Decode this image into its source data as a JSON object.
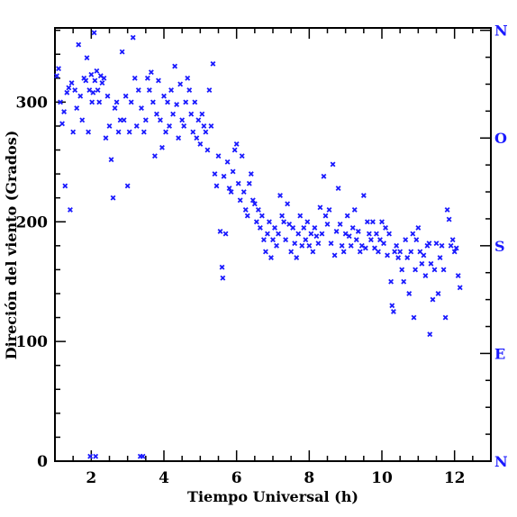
{
  "chart_data": {
    "type": "scatter",
    "xlabel": "Tiempo Universal (h)",
    "ylabel": "Direción del viento (Grados)",
    "xlim": [
      1.0,
      13.0
    ],
    "ylim": [
      0,
      362
    ],
    "x_ticks": [
      2,
      4,
      6,
      8,
      10,
      12
    ],
    "y_ticks": [
      0,
      100,
      200,
      300
    ],
    "right_axis_labels": [
      {
        "value": 0,
        "label": "N"
      },
      {
        "value": 90,
        "label": "E"
      },
      {
        "value": 180,
        "label": "S"
      },
      {
        "value": 270,
        "label": "O"
      },
      {
        "value": 360,
        "label": "N"
      }
    ],
    "marker": "x",
    "grid": false,
    "colors": {
      "points": "#1a1aff",
      "right_labels": "#1a1aff",
      "axes": "#000000"
    },
    "series": [
      {
        "points": [
          [
            1.05,
            322
          ],
          [
            1.1,
            328
          ],
          [
            1.15,
            300
          ],
          [
            1.2,
            282
          ],
          [
            1.25,
            292
          ],
          [
            1.28,
            230
          ],
          [
            1.33,
            308
          ],
          [
            1.38,
            312
          ],
          [
            1.42,
            210
          ],
          [
            1.46,
            316
          ],
          [
            1.5,
            275
          ],
          [
            1.55,
            310
          ],
          [
            1.6,
            295
          ],
          [
            1.65,
            348
          ],
          [
            1.7,
            305
          ],
          [
            1.75,
            285
          ],
          [
            1.8,
            320
          ],
          [
            1.85,
            318
          ],
          [
            1.88,
            337
          ],
          [
            1.92,
            275
          ],
          [
            1.95,
            310
          ],
          [
            1.97,
            4
          ],
          [
            2.0,
            323
          ],
          [
            2.02,
            300
          ],
          [
            2.05,
            308
          ],
          [
            2.08,
            358
          ],
          [
            2.1,
            318
          ],
          [
            2.12,
            4
          ],
          [
            2.15,
            326
          ],
          [
            2.18,
            310
          ],
          [
            2.22,
            300
          ],
          [
            2.26,
            322
          ],
          [
            2.3,
            316
          ],
          [
            2.35,
            320
          ],
          [
            2.4,
            270
          ],
          [
            2.45,
            305
          ],
          [
            2.5,
            280
          ],
          [
            2.55,
            252
          ],
          [
            2.6,
            220
          ],
          [
            2.65,
            295
          ],
          [
            2.7,
            300
          ],
          [
            2.75,
            275
          ],
          [
            2.8,
            285
          ],
          [
            2.85,
            342
          ],
          [
            2.9,
            285
          ],
          [
            2.95,
            305
          ],
          [
            3.0,
            230
          ],
          [
            3.05,
            275
          ],
          [
            3.1,
            300
          ],
          [
            3.15,
            354
          ],
          [
            3.2,
            320
          ],
          [
            3.25,
            280
          ],
          [
            3.3,
            310
          ],
          [
            3.35,
            4
          ],
          [
            3.38,
            295
          ],
          [
            3.42,
            4
          ],
          [
            3.45,
            275
          ],
          [
            3.5,
            285
          ],
          [
            3.55,
            320
          ],
          [
            3.6,
            310
          ],
          [
            3.65,
            325
          ],
          [
            3.7,
            300
          ],
          [
            3.75,
            255
          ],
          [
            3.8,
            290
          ],
          [
            3.85,
            318
          ],
          [
            3.9,
            285
          ],
          [
            3.95,
            262
          ],
          [
            4.0,
            305
          ],
          [
            4.05,
            275
          ],
          [
            4.1,
            300
          ],
          [
            4.15,
            280
          ],
          [
            4.2,
            310
          ],
          [
            4.25,
            290
          ],
          [
            4.3,
            330
          ],
          [
            4.35,
            298
          ],
          [
            4.4,
            270
          ],
          [
            4.45,
            315
          ],
          [
            4.5,
            285
          ],
          [
            4.55,
            280
          ],
          [
            4.6,
            300
          ],
          [
            4.65,
            320
          ],
          [
            4.7,
            310
          ],
          [
            4.75,
            290
          ],
          [
            4.8,
            275
          ],
          [
            4.85,
            300
          ],
          [
            4.9,
            270
          ],
          [
            4.95,
            285
          ],
          [
            5.0,
            265
          ],
          [
            5.05,
            290
          ],
          [
            5.1,
            280
          ],
          [
            5.15,
            275
          ],
          [
            5.2,
            260
          ],
          [
            5.25,
            310
          ],
          [
            5.3,
            280
          ],
          [
            5.35,
            332
          ],
          [
            5.4,
            240
          ],
          [
            5.45,
            230
          ],
          [
            5.5,
            255
          ],
          [
            5.55,
            192
          ],
          [
            5.6,
            162
          ],
          [
            5.62,
            153
          ],
          [
            5.65,
            238
          ],
          [
            5.7,
            190
          ],
          [
            5.75,
            250
          ],
          [
            5.8,
            228
          ],
          [
            5.85,
            225
          ],
          [
            5.9,
            242
          ],
          [
            5.95,
            260
          ],
          [
            6.0,
            265
          ],
          [
            6.05,
            232
          ],
          [
            6.1,
            218
          ],
          [
            6.15,
            255
          ],
          [
            6.2,
            225
          ],
          [
            6.25,
            210
          ],
          [
            6.3,
            205
          ],
          [
            6.35,
            232
          ],
          [
            6.4,
            240
          ],
          [
            6.45,
            218
          ],
          [
            6.5,
            215
          ],
          [
            6.55,
            200
          ],
          [
            6.6,
            210
          ],
          [
            6.65,
            195
          ],
          [
            6.7,
            205
          ],
          [
            6.75,
            185
          ],
          [
            6.8,
            175
          ],
          [
            6.85,
            190
          ],
          [
            6.9,
            200
          ],
          [
            6.95,
            170
          ],
          [
            7.0,
            185
          ],
          [
            7.05,
            195
          ],
          [
            7.1,
            180
          ],
          [
            7.15,
            190
          ],
          [
            7.2,
            222
          ],
          [
            7.25,
            205
          ],
          [
            7.3,
            200
          ],
          [
            7.35,
            185
          ],
          [
            7.4,
            215
          ],
          [
            7.45,
            198
          ],
          [
            7.5,
            175
          ],
          [
            7.55,
            195
          ],
          [
            7.6,
            182
          ],
          [
            7.65,
            170
          ],
          [
            7.7,
            190
          ],
          [
            7.75,
            205
          ],
          [
            7.8,
            180
          ],
          [
            7.85,
            195
          ],
          [
            7.9,
            185
          ],
          [
            7.95,
            200
          ],
          [
            8.0,
            180
          ],
          [
            8.05,
            190
          ],
          [
            8.1,
            175
          ],
          [
            8.15,
            195
          ],
          [
            8.2,
            188
          ],
          [
            8.25,
            182
          ],
          [
            8.3,
            212
          ],
          [
            8.35,
            190
          ],
          [
            8.4,
            238
          ],
          [
            8.45,
            205
          ],
          [
            8.5,
            198
          ],
          [
            8.55,
            210
          ],
          [
            8.6,
            182
          ],
          [
            8.65,
            248
          ],
          [
            8.7,
            172
          ],
          [
            8.75,
            192
          ],
          [
            8.8,
            228
          ],
          [
            8.85,
            198
          ],
          [
            8.9,
            180
          ],
          [
            8.95,
            175
          ],
          [
            9.0,
            190
          ],
          [
            9.05,
            205
          ],
          [
            9.1,
            188
          ],
          [
            9.15,
            180
          ],
          [
            9.2,
            195
          ],
          [
            9.25,
            210
          ],
          [
            9.3,
            185
          ],
          [
            9.35,
            192
          ],
          [
            9.4,
            175
          ],
          [
            9.45,
            180
          ],
          [
            9.5,
            222
          ],
          [
            9.55,
            178
          ],
          [
            9.6,
            200
          ],
          [
            9.65,
            190
          ],
          [
            9.7,
            185
          ],
          [
            9.75,
            200
          ],
          [
            9.8,
            178
          ],
          [
            9.85,
            190
          ],
          [
            9.9,
            175
          ],
          [
            9.95,
            185
          ],
          [
            10.0,
            200
          ],
          [
            10.05,
            182
          ],
          [
            10.1,
            195
          ],
          [
            10.15,
            172
          ],
          [
            10.2,
            190
          ],
          [
            10.25,
            150
          ],
          [
            10.28,
            130
          ],
          [
            10.32,
            125
          ],
          [
            10.35,
            175
          ],
          [
            10.4,
            180
          ],
          [
            10.45,
            170
          ],
          [
            10.5,
            175
          ],
          [
            10.55,
            160
          ],
          [
            10.6,
            150
          ],
          [
            10.65,
            185
          ],
          [
            10.7,
            170
          ],
          [
            10.75,
            140
          ],
          [
            10.8,
            175
          ],
          [
            10.85,
            190
          ],
          [
            10.88,
            120
          ],
          [
            10.92,
            160
          ],
          [
            10.95,
            185
          ],
          [
            11.0,
            195
          ],
          [
            11.05,
            175
          ],
          [
            11.1,
            165
          ],
          [
            11.15,
            172
          ],
          [
            11.2,
            155
          ],
          [
            11.25,
            180
          ],
          [
            11.3,
            182
          ],
          [
            11.32,
            106
          ],
          [
            11.35,
            165
          ],
          [
            11.4,
            135
          ],
          [
            11.45,
            160
          ],
          [
            11.5,
            182
          ],
          [
            11.55,
            140
          ],
          [
            11.6,
            170
          ],
          [
            11.65,
            180
          ],
          [
            11.7,
            160
          ],
          [
            11.75,
            120
          ],
          [
            11.8,
            210
          ],
          [
            11.85,
            202
          ],
          [
            11.9,
            180
          ],
          [
            11.95,
            185
          ],
          [
            12.0,
            175
          ],
          [
            12.05,
            178
          ],
          [
            12.1,
            155
          ],
          [
            12.15,
            145
          ]
        ]
      }
    ]
  }
}
